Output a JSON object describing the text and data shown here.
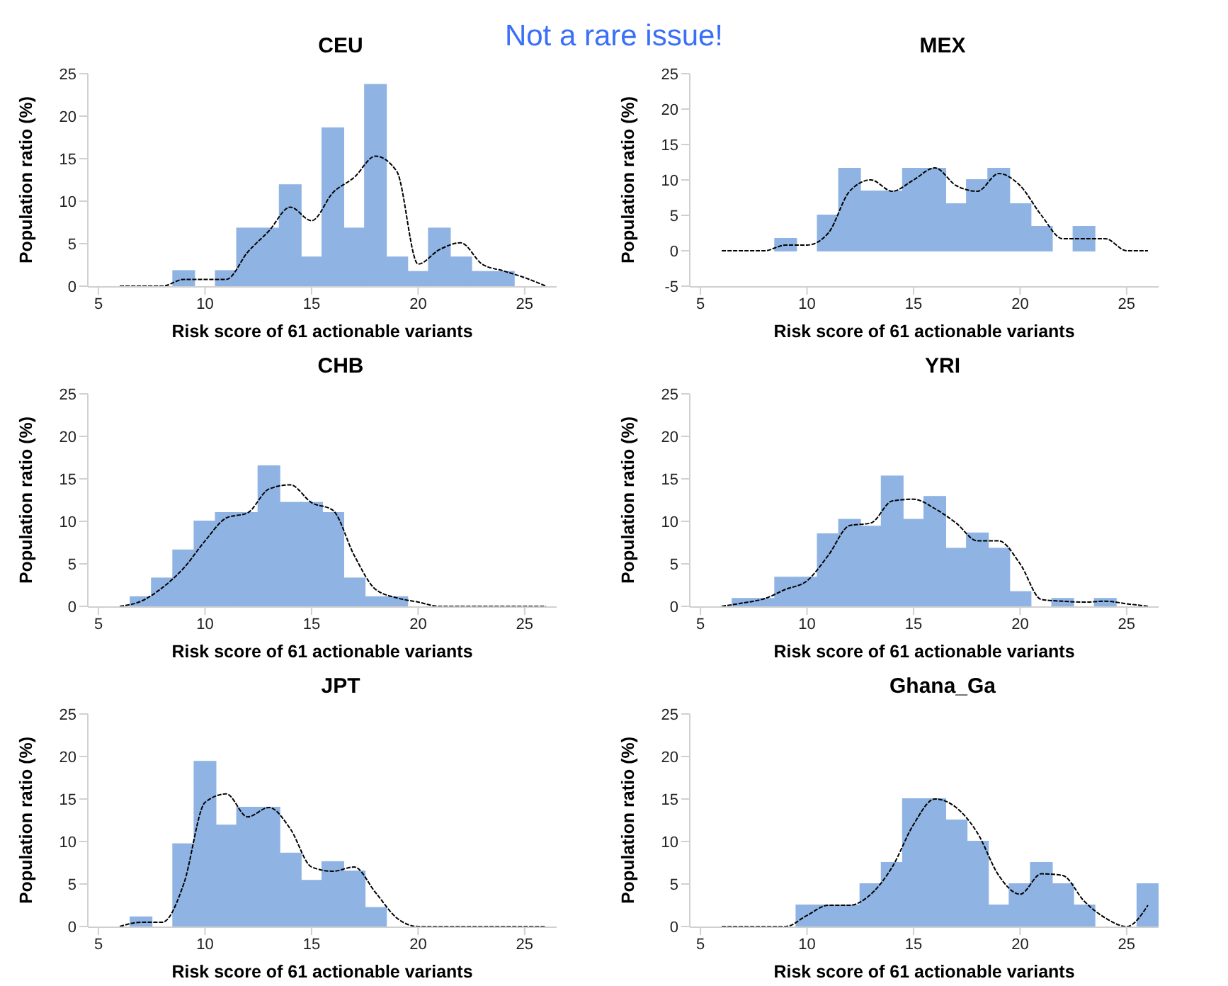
{
  "chart_data": [
    {
      "type": "histogram",
      "title": "CEU",
      "xlabel": "Risk score of 61 actionable variants",
      "ylabel": "Population ratio (%)",
      "annotations": [
        "Not a rare issue!"
      ],
      "color": "#8fb4e3",
      "xlim": [
        4.5,
        26.5
      ],
      "xticks": [
        5,
        10,
        15,
        20,
        25
      ],
      "ylim": [
        0,
        25
      ],
      "yticks": [
        0,
        5,
        10,
        15,
        20,
        25
      ],
      "bins": [
        8.5,
        9.5,
        10.5,
        11.5,
        12.5,
        13.5,
        14.5,
        15.5,
        16.5,
        17.5,
        18.5,
        19.5,
        20.5,
        21.5,
        22.5,
        23.5,
        24.5
      ],
      "values": [
        1.8,
        0,
        1.8,
        6.8,
        6.8,
        11.9,
        3.4,
        18.6,
        6.8,
        23.7,
        3.4,
        1.7,
        6.8,
        3.4,
        1.7,
        1.7
      ],
      "series": [
        {
          "type": "line",
          "color": "#000000",
          "line_style": "dashed",
          "x": [
            6,
            7,
            8,
            9,
            10,
            11,
            12,
            13,
            14,
            15,
            16,
            17,
            18,
            19,
            20,
            21,
            22,
            23,
            24,
            25,
            26
          ],
          "values": [
            0,
            0,
            0,
            0.8,
            0.8,
            0.8,
            4,
            6.5,
            9.3,
            7.7,
            11,
            12.8,
            15.3,
            13.5,
            2.6,
            4.3,
            5.1,
            2.6,
            1.8,
            1,
            0
          ]
        }
      ]
    },
    {
      "type": "histogram",
      "title": "MEX",
      "xlabel": "Risk score of 61 actionable variants",
      "ylabel": "Population ratio (%)",
      "color": "#8fb4e3",
      "xlim": [
        4.5,
        26.5
      ],
      "xticks": [
        5,
        10,
        15,
        20,
        25
      ],
      "ylim": [
        -5,
        25
      ],
      "yticks": [
        -5,
        0,
        5,
        10,
        15,
        20,
        25
      ],
      "bins": [
        8.5,
        9.5,
        10.5,
        11.5,
        12.5,
        13.5,
        14.5,
        15.5,
        16.5,
        17.5,
        18.5,
        19.5,
        20.5,
        21.5,
        22.5,
        23.5
      ],
      "values": [
        1.7,
        0,
        5,
        11.6,
        8.4,
        8.4,
        11.6,
        11.6,
        6.6,
        10,
        11.6,
        6.6,
        3.4,
        0,
        3.4
      ],
      "series": [
        {
          "type": "line",
          "color": "#000000",
          "line_style": "dashed",
          "x": [
            6,
            7,
            8,
            9,
            10,
            11,
            12,
            13,
            14,
            15,
            16,
            17,
            18,
            19,
            20,
            21,
            22,
            23,
            24,
            25,
            26
          ],
          "values": [
            0,
            0,
            0,
            0.8,
            0.8,
            2.5,
            8.4,
            10,
            8.4,
            10,
            11.7,
            9.2,
            8.4,
            10.9,
            9.2,
            5,
            1.7,
            1.7,
            1.7,
            0,
            0
          ]
        }
      ]
    },
    {
      "type": "histogram",
      "title": "CHB",
      "xlabel": "Risk score of 61 actionable variants",
      "ylabel": "Population ratio (%)",
      "color": "#8fb4e3",
      "xlim": [
        4.5,
        26.5
      ],
      "xticks": [
        5,
        10,
        15,
        20,
        25
      ],
      "ylim": [
        0,
        25
      ],
      "yticks": [
        0,
        5,
        10,
        15,
        20,
        25
      ],
      "bins": [
        6.5,
        7.5,
        8.5,
        9.5,
        10.5,
        11.5,
        12.5,
        13.5,
        14.5,
        15.5,
        16.5,
        17.5,
        18.5,
        19.5
      ],
      "values": [
        1.1,
        3.3,
        6.6,
        10,
        11,
        11,
        16.5,
        12.2,
        12.2,
        11,
        3.3,
        1.1,
        1.1
      ],
      "series": [
        {
          "type": "line",
          "color": "#000000",
          "line_style": "dashed",
          "x": [
            6,
            7,
            8,
            9,
            10,
            11,
            12,
            13,
            14,
            15,
            16,
            17,
            18,
            19,
            20,
            21,
            22,
            23,
            24,
            25,
            26
          ],
          "values": [
            0,
            0.6,
            2.2,
            4.5,
            7.7,
            10.4,
            11,
            13.8,
            14.3,
            12.2,
            11.3,
            6,
            2,
            1,
            0.5,
            0,
            0,
            0,
            0,
            0,
            0
          ]
        }
      ]
    },
    {
      "type": "histogram",
      "title": "YRI",
      "xlabel": "Risk score of 61 actionable variants",
      "ylabel": "Population ratio (%)",
      "color": "#8fb4e3",
      "xlim": [
        4.5,
        26.5
      ],
      "xticks": [
        5,
        10,
        15,
        20,
        25
      ],
      "ylim": [
        0,
        25
      ],
      "yticks": [
        0,
        5,
        10,
        15,
        20,
        25
      ],
      "bins": [
        6.5,
        7.5,
        8.5,
        9.5,
        10.5,
        11.5,
        12.5,
        13.5,
        14.5,
        15.5,
        16.5,
        17.5,
        18.5,
        19.5,
        20.5,
        21.5,
        22.5,
        23.5,
        24.5
      ],
      "values": [
        0.9,
        0.9,
        3.4,
        3.4,
        8.5,
        10.2,
        9.4,
        15.3,
        10.2,
        12.9,
        6.8,
        8.6,
        6.8,
        1.7,
        0,
        0.9,
        0,
        0.9
      ],
      "series": [
        {
          "type": "line",
          "color": "#000000",
          "line_style": "dashed",
          "x": [
            6,
            7,
            8,
            9,
            10,
            11,
            12,
            13,
            14,
            15,
            16,
            17,
            18,
            19,
            20,
            21,
            22,
            23,
            24,
            25,
            26
          ],
          "values": [
            0,
            0.4,
            0.9,
            2,
            3,
            6,
            9.5,
            9.8,
            12.4,
            12.6,
            11.5,
            9.8,
            7.7,
            7.7,
            5,
            0.8,
            0.6,
            0.5,
            0.6,
            0.3,
            0
          ]
        }
      ]
    },
    {
      "type": "histogram",
      "title": "JPT",
      "xlabel": "Risk score of 61 actionable variants",
      "ylabel": "Population ratio (%)",
      "color": "#8fb4e3",
      "xlim": [
        4.5,
        26.5
      ],
      "xticks": [
        5,
        10,
        15,
        20,
        25
      ],
      "ylim": [
        0,
        25
      ],
      "yticks": [
        0,
        5,
        10,
        15,
        20,
        25
      ],
      "bins": [
        6.5,
        7.5,
        8.5,
        9.5,
        10.5,
        11.5,
        12.5,
        13.5,
        14.5,
        15.5,
        16.5,
        17.5,
        18.5
      ],
      "values": [
        1.1,
        0,
        9.7,
        19.4,
        11.9,
        14,
        14,
        8.6,
        5.4,
        7.6,
        6.5,
        2.2
      ],
      "series": [
        {
          "type": "line",
          "color": "#000000",
          "line_style": "dashed",
          "x": [
            6,
            7,
            8,
            9,
            10,
            11,
            12,
            13,
            14,
            15,
            16,
            17,
            18,
            19,
            20,
            21,
            22,
            23,
            24,
            25,
            26
          ],
          "values": [
            0,
            0.5,
            0.5,
            5,
            14.6,
            15.6,
            12.9,
            14,
            11.5,
            7,
            6.5,
            7,
            4,
            1,
            0,
            0,
            0,
            0,
            0,
            0,
            0
          ]
        }
      ]
    },
    {
      "type": "histogram",
      "title": "Ghana_Ga",
      "xlabel": "Risk score of 61 actionable variants",
      "ylabel": "Population ratio (%)",
      "color": "#8fb4e3",
      "xlim": [
        4.5,
        26.5
      ],
      "xticks": [
        5,
        10,
        15,
        20,
        25
      ],
      "ylim": [
        0,
        25
      ],
      "yticks": [
        0,
        5,
        10,
        15,
        20,
        25
      ],
      "bins": [
        9.5,
        10.5,
        11.5,
        12.5,
        13.5,
        14.5,
        15.5,
        16.5,
        17.5,
        18.5,
        19.5,
        20.5,
        21.5,
        22.5,
        23.5,
        24.5,
        25.5,
        26.5
      ],
      "values": [
        2.5,
        2.5,
        2.5,
        5,
        7.5,
        15,
        15,
        12.5,
        10,
        2.5,
        5,
        7.5,
        5,
        2.5,
        0,
        0,
        5
      ],
      "series": [
        {
          "type": "line",
          "color": "#000000",
          "line_style": "dashed",
          "x": [
            6,
            7,
            8,
            9,
            10,
            11,
            12,
            13,
            14,
            15,
            16,
            17,
            18,
            19,
            20,
            21,
            22,
            23,
            24,
            25,
            26
          ],
          "values": [
            0,
            0,
            0,
            0,
            1.3,
            2.5,
            2.5,
            3.8,
            7,
            12,
            15,
            14,
            11,
            6,
            3.8,
            6.2,
            6,
            3,
            1,
            0,
            2.5
          ]
        }
      ]
    }
  ]
}
